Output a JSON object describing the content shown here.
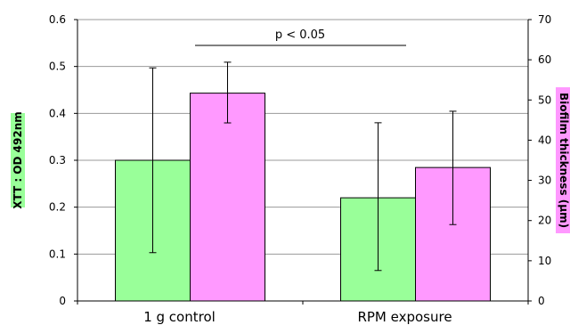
{
  "chart_data": {
    "type": "bar",
    "categories": [
      "1 g control",
      "RPM exposure"
    ],
    "series": [
      {
        "axis": "left",
        "color": "#99ff99",
        "values": [
          0.3,
          0.22
        ],
        "error_low": [
          0.103,
          0.065
        ],
        "error_high": [
          0.497,
          0.38
        ]
      },
      {
        "axis": "right",
        "color": "#ff99ff",
        "values": [
          51.7,
          33.2
        ],
        "error_low": [
          44.3,
          19.0
        ],
        "error_high": [
          59.4,
          47.2
        ]
      }
    ],
    "ylabel": "XTT : OD 492nm",
    "ylabel_bg": "#99ff99",
    "ylim": [
      0,
      0.6
    ],
    "yticks": [
      "0",
      "0.1",
      "0.2",
      "0.3",
      "0.4",
      "0.5",
      "0.6"
    ],
    "y2label": "Biofilm thickness (µm)",
    "y2label_bg": "#ff99ff",
    "y2lim": [
      0,
      70
    ],
    "y2ticks": [
      "0",
      "10",
      "20",
      "30",
      "40",
      "50",
      "60",
      "70"
    ],
    "annotation": "p < 0.05",
    "grid": true
  }
}
